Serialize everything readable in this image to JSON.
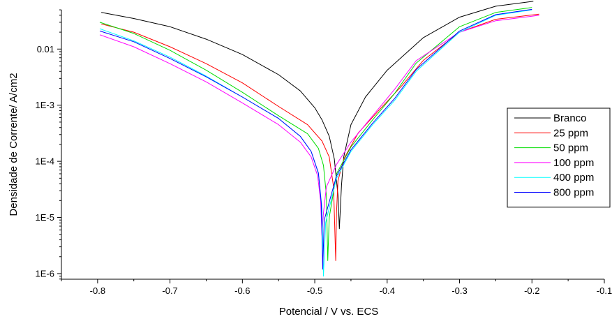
{
  "chart_data": {
    "type": "line",
    "title": "",
    "xlabel": "Potencial  / V vs. ECS",
    "ylabel": "Densidade de Corrente/ A/cm2",
    "xlim": [
      -0.85,
      -0.1
    ],
    "ylim_log10": [
      -6.1,
      -1.3
    ],
    "y_scale": "log",
    "x_ticks": [
      -0.8,
      -0.7,
      -0.6,
      -0.5,
      -0.4,
      -0.3,
      -0.2,
      -0.1
    ],
    "x_tick_labels": [
      "-0.8",
      "-0.7",
      "-0.6",
      "-0.5",
      "-0.4",
      "-0.3",
      "-0.2",
      "-0.1"
    ],
    "y_ticks": [
      0.01,
      0.001,
      0.0001,
      1e-05,
      1e-06
    ],
    "y_tick_labels": [
      "0.01",
      "1E-3",
      "1E-4",
      "1E-5",
      "1E-6"
    ],
    "grid": false,
    "legend_position": "right",
    "series": [
      {
        "name": "Branco",
        "color": "#000000",
        "x": [
          -0.795,
          -0.75,
          -0.7,
          -0.65,
          -0.6,
          -0.55,
          -0.52,
          -0.5,
          -0.49,
          -0.48,
          -0.473,
          -0.468,
          -0.466,
          -0.463,
          -0.46,
          -0.45,
          -0.43,
          -0.4,
          -0.35,
          -0.3,
          -0.25,
          -0.198
        ],
        "y": [
          0.045,
          0.035,
          0.025,
          0.015,
          0.008,
          0.0035,
          0.0018,
          0.0009,
          0.00055,
          0.00028,
          0.00011,
          2.5e-05,
          6.3e-06,
          3.8e-05,
          0.00012,
          0.00045,
          0.0014,
          0.0042,
          0.016,
          0.037,
          0.058,
          0.071
        ]
      },
      {
        "name": "25 ppm",
        "color": "#ff0000",
        "x": [
          -0.795,
          -0.75,
          -0.7,
          -0.65,
          -0.6,
          -0.55,
          -0.51,
          -0.49,
          -0.48,
          -0.474,
          -0.471,
          -0.47,
          -0.468,
          -0.46,
          -0.44,
          -0.41,
          -0.38,
          -0.35,
          -0.3,
          -0.25,
          -0.19
        ],
        "y": [
          0.028,
          0.02,
          0.011,
          0.0055,
          0.0025,
          0.00095,
          0.00045,
          0.00023,
          0.00012,
          3.5e-05,
          1.7e-06,
          1.2e-05,
          4.5e-05,
          0.00011,
          0.00032,
          0.00085,
          0.0022,
          0.0063,
          0.02,
          0.034,
          0.042
        ]
      },
      {
        "name": "50 ppm",
        "color": "#00dd00",
        "x": [
          -0.797,
          -0.75,
          -0.7,
          -0.65,
          -0.6,
          -0.55,
          -0.51,
          -0.495,
          -0.488,
          -0.484,
          -0.482,
          -0.48,
          -0.47,
          -0.45,
          -0.42,
          -0.39,
          -0.36,
          -0.3,
          -0.25,
          -0.2
        ],
        "y": [
          0.03,
          0.019,
          0.0095,
          0.0042,
          0.0017,
          0.00065,
          0.00031,
          0.00017,
          8.5e-05,
          2.5e-05,
          1.7e-06,
          1e-05,
          6e-05,
          0.00018,
          0.00055,
          0.0016,
          0.0056,
          0.025,
          0.045,
          0.055
        ]
      },
      {
        "name": "100 ppm",
        "color": "#ff00ff",
        "x": [
          -0.797,
          -0.75,
          -0.7,
          -0.65,
          -0.6,
          -0.55,
          -0.52,
          -0.505,
          -0.496,
          -0.492,
          -0.49,
          -0.488,
          -0.484,
          -0.47,
          -0.45,
          -0.42,
          -0.39,
          -0.36,
          -0.3,
          -0.25,
          -0.19
        ],
        "y": [
          0.018,
          0.011,
          0.0055,
          0.0026,
          0.0011,
          0.00045,
          0.00022,
          0.00012,
          5.5e-05,
          2e-05,
          4.8e-06,
          1.2e-05,
          3.5e-05,
          8.8e-05,
          0.00022,
          0.00065,
          0.0019,
          0.0062,
          0.02,
          0.032,
          0.04
        ]
      },
      {
        "name": "400 ppm",
        "color": "#00ffff",
        "x": [
          -0.797,
          -0.75,
          -0.7,
          -0.65,
          -0.6,
          -0.55,
          -0.52,
          -0.505,
          -0.495,
          -0.49,
          -0.488,
          -0.485,
          -0.47,
          -0.45,
          -0.42,
          -0.39,
          -0.36,
          -0.3,
          -0.25,
          -0.2
        ],
        "y": [
          0.023,
          0.014,
          0.0072,
          0.0033,
          0.0014,
          0.00058,
          0.00028,
          0.00015,
          6e-05,
          1.5e-05,
          9e-07,
          8e-06,
          5e-05,
          0.00015,
          0.00045,
          0.0012,
          0.004,
          0.02,
          0.04,
          0.05
        ]
      },
      {
        "name": "800 ppm",
        "color": "#0000ff",
        "x": [
          -0.797,
          -0.75,
          -0.7,
          -0.65,
          -0.6,
          -0.55,
          -0.52,
          -0.505,
          -0.495,
          -0.491,
          -0.489,
          -0.487,
          -0.47,
          -0.45,
          -0.42,
          -0.39,
          -0.36,
          -0.3,
          -0.25,
          -0.2
        ],
        "y": [
          0.021,
          0.0135,
          0.0068,
          0.0032,
          0.0014,
          0.00058,
          0.00028,
          0.00015,
          6.2e-05,
          1.8e-05,
          1.2e-06,
          9e-06,
          5.5e-05,
          0.00016,
          0.00048,
          0.0013,
          0.0043,
          0.021,
          0.041,
          0.051
        ]
      }
    ]
  }
}
